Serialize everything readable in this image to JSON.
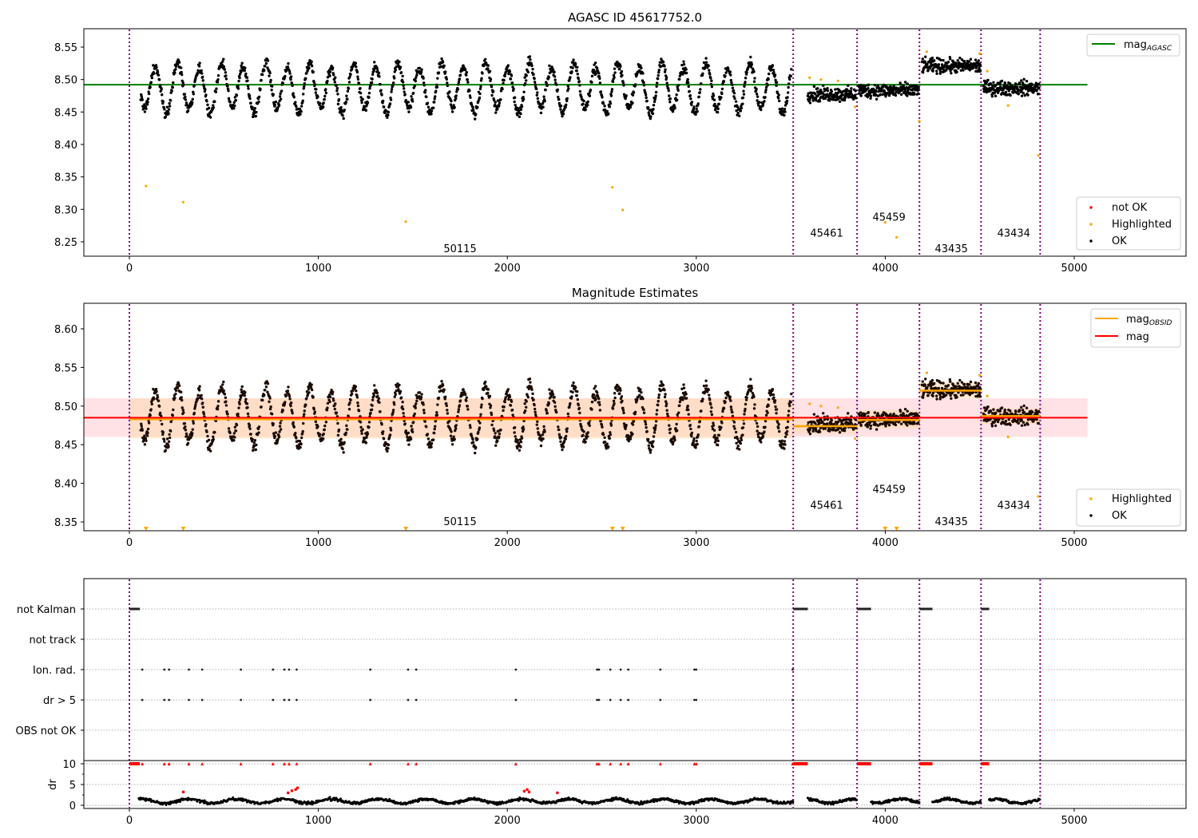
{
  "chart_data": [
    {
      "type": "scatter",
      "id": "agasc",
      "title": "AGASC ID 45617752.0",
      "xlabel": "",
      "ylabel": "",
      "xlim": [
        -240,
        5600
      ],
      "ylim": [
        8.228,
        8.578
      ],
      "xticks": [
        0,
        1000,
        2000,
        3000,
        4000,
        5000
      ],
      "yticks": [
        "8.25",
        "8.30",
        "8.35",
        "8.40",
        "8.45",
        "8.50",
        "8.55"
      ],
      "ytick_values": [
        8.25,
        8.3,
        8.35,
        8.4,
        8.45,
        8.5,
        8.55
      ],
      "hlines": [
        {
          "name": "mag_AGASC",
          "y": 8.492,
          "x_range": [
            -240,
            5070
          ],
          "color": "#008000"
        }
      ],
      "legend_top": {
        "placement": "top-right",
        "entries": [
          {
            "label": "mag",
            "sub": "AGASC",
            "kind": "line",
            "color": "#008000"
          }
        ]
      },
      "legend_bottom": {
        "placement": "bottom-right",
        "entries": [
          {
            "label": "not OK",
            "kind": "dot",
            "color": "#ff0000"
          },
          {
            "label": "Highlighted",
            "kind": "dot",
            "color": "#ffa500"
          },
          {
            "label": "OK",
            "kind": "dot",
            "color": "#000000"
          }
        ]
      },
      "segment_labels": [
        {
          "text": "50115",
          "x": 1750,
          "y": 8.24
        },
        {
          "text": "45461",
          "x": 3690,
          "y": 8.264
        },
        {
          "text": "45459",
          "x": 4020,
          "y": 8.289
        },
        {
          "text": "43435",
          "x": 4350,
          "y": 8.24
        },
        {
          "text": "43434",
          "x": 4680,
          "y": 8.264
        }
      ],
      "highlighted_points": [
        [
          88,
          8.336
        ],
        [
          285,
          8.311
        ],
        [
          1463,
          8.281
        ],
        [
          2556,
          8.334
        ],
        [
          2611,
          8.299
        ],
        [
          3600,
          8.503
        ],
        [
          3660,
          8.5
        ],
        [
          3750,
          8.498
        ],
        [
          3840,
          8.458
        ],
        [
          4000,
          8.28
        ],
        [
          4060,
          8.257
        ],
        [
          4180,
          8.436
        ],
        [
          4220,
          8.543
        ],
        [
          4500,
          8.54
        ],
        [
          4540,
          8.513
        ],
        [
          4650,
          8.46
        ],
        [
          4810,
          8.383
        ]
      ]
    },
    {
      "type": "scatter",
      "id": "estimates",
      "title": "Magnitude Estimates",
      "xlabel": "",
      "ylabel": "",
      "xlim": [
        -240,
        5600
      ],
      "ylim": [
        8.337,
        8.631
      ],
      "xticks": [
        0,
        1000,
        2000,
        3000,
        4000,
        5000
      ],
      "yticks": [
        "8.35",
        "8.40",
        "8.45",
        "8.50",
        "8.55",
        "8.60"
      ],
      "ytick_values": [
        8.35,
        8.4,
        8.45,
        8.5,
        8.55,
        8.6
      ],
      "mag": {
        "y": 8.485,
        "band": [
          8.46,
          8.51
        ],
        "x_range": [
          -240,
          5070
        ],
        "color": "#ff0000"
      },
      "mag_obsid": [
        {
          "x_range": [
            0,
            3513
          ],
          "y": 8.483,
          "band": [
            8.458,
            8.51
          ]
        },
        {
          "x_range": [
            3513,
            3851
          ],
          "y": 8.474,
          "band": [
            8.464,
            8.486
          ]
        },
        {
          "x_range": [
            3851,
            4181
          ],
          "y": 8.482,
          "band": [
            8.471,
            8.495
          ]
        },
        {
          "x_range": [
            4181,
            4507
          ],
          "y": 8.52,
          "band": [
            8.51,
            8.531
          ]
        },
        {
          "x_range": [
            4507,
            4820
          ],
          "y": 8.487,
          "band": [
            8.477,
            8.497
          ]
        }
      ],
      "legend_top": {
        "placement": "top-right",
        "entries": [
          {
            "label": "mag",
            "sub": "OBSID",
            "kind": "line",
            "color": "#ffa500"
          },
          {
            "label": "mag",
            "sub": "",
            "kind": "line",
            "color": "#ff0000"
          }
        ]
      },
      "legend_bottom": {
        "placement": "bottom-right",
        "entries": [
          {
            "label": "Highlighted",
            "kind": "dot",
            "color": "#ffa500"
          },
          {
            "label": "OK",
            "kind": "dot",
            "color": "#000000"
          }
        ]
      },
      "segment_labels": [
        {
          "text": "50115",
          "x": 1750,
          "y": 8.351
        },
        {
          "text": "45461",
          "x": 3690,
          "y": 8.372
        },
        {
          "text": "45459",
          "x": 4020,
          "y": 8.393
        },
        {
          "text": "43435",
          "x": 4350,
          "y": 8.351
        },
        {
          "text": "43434",
          "x": 4680,
          "y": 8.372
        }
      ],
      "off_scale_markers": [
        88,
        285,
        1463,
        2556,
        2611,
        4000,
        4060
      ],
      "highlighted_points": [
        [
          3600,
          8.503
        ],
        [
          3660,
          8.5
        ],
        [
          3750,
          8.498
        ],
        [
          3840,
          8.458
        ],
        [
          4220,
          8.543
        ],
        [
          4500,
          8.54
        ],
        [
          4540,
          8.513
        ],
        [
          4650,
          8.46
        ],
        [
          4810,
          8.383
        ]
      ]
    },
    {
      "type": "scatter",
      "id": "flags",
      "title": "",
      "xlim": [
        -240,
        5600
      ],
      "categories": [
        "not Kalman",
        "not track",
        "Ion. rad.",
        "dr > 5",
        "OBS not OK"
      ],
      "not_kalman_ranges": [
        [
          0,
          55
        ],
        [
          3513,
          3590
        ],
        [
          3851,
          3925
        ],
        [
          4181,
          4250
        ],
        [
          4507,
          4550
        ]
      ],
      "event_x": [
        68,
        185,
        210,
        315,
        385,
        590,
        760,
        820,
        845,
        885,
        1275,
        1475,
        1518,
        2045,
        2475,
        2485,
        2545,
        2600,
        2640,
        2810,
        2990,
        3000,
        3510
      ],
      "grid": true
    },
    {
      "type": "scatter",
      "id": "dr",
      "xlabel": "",
      "ylabel": "dr",
      "xlim": [
        -240,
        5600
      ],
      "ylim": [
        -0.5,
        10.5
      ],
      "xticks": [
        0,
        1000,
        2000,
        3000,
        4000,
        5000
      ],
      "yticks": [
        "0",
        "5",
        "10"
      ],
      "ytick_values": [
        0,
        5,
        10
      ],
      "segments": [
        [
          50,
          3513
        ],
        [
          3590,
          3851
        ],
        [
          3925,
          4181
        ],
        [
          4250,
          4507
        ],
        [
          4550,
          4820
        ]
      ],
      "typical_dr": 1.0,
      "red_points": [
        [
          285,
          3.2
        ],
        [
          840,
          3.0
        ],
        [
          860,
          3.5
        ],
        [
          880,
          3.8
        ],
        [
          890,
          4.2
        ],
        [
          2090,
          3.4
        ],
        [
          2105,
          3.8
        ],
        [
          2115,
          3.2
        ],
        [
          2265,
          3.0
        ]
      ],
      "red_cap_x": [
        0,
        20,
        40,
        68,
        185,
        210,
        315,
        385,
        590,
        760,
        820,
        845,
        885,
        1275,
        1475,
        1518,
        2045,
        2475,
        2485,
        2545,
        2600,
        2640,
        2810,
        2990,
        3000,
        3513,
        3540,
        3570,
        3851,
        3880,
        3910,
        4181,
        4210,
        4240,
        4507,
        4530
      ]
    }
  ],
  "segment_boundaries": [
    0,
    3513,
    3851,
    4181,
    4507,
    4820
  ],
  "colors": {
    "ok": "#000000",
    "highlighted": "#ffa500",
    "not_ok": "#ff0000",
    "agasc": "#008000",
    "boundary": "#800080",
    "band_mag": "#ffb6c1",
    "band_obsid": "#ffd8a8"
  }
}
